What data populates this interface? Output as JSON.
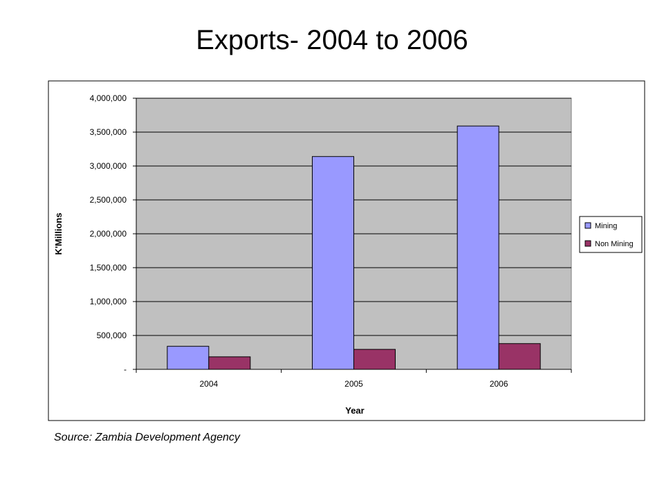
{
  "slide": {
    "title": "Exports- 2004 to 2006",
    "source": "Source: Zambia Development Agency"
  },
  "chart_data": {
    "type": "bar",
    "title": "",
    "xlabel": "Year",
    "ylabel": "K'Millions",
    "categories": [
      "2004",
      "2005",
      "2006"
    ],
    "series": [
      {
        "name": "Mining",
        "values": [
          340000,
          3140000,
          3590000
        ],
        "color": "#9999ff"
      },
      {
        "name": "Non Mining",
        "values": [
          185000,
          295000,
          380000
        ],
        "color": "#993366"
      }
    ],
    "ylim": [
      0,
      4000000
    ],
    "yticks": [
      0,
      500000,
      1000000,
      1500000,
      2000000,
      2500000,
      3000000,
      3500000,
      4000000
    ],
    "ytick_labels": [
      "-",
      "500,000",
      "1,000,000",
      "1,500,000",
      "2,000,000",
      "2,500,000",
      "3,000,000",
      "3,500,000",
      "4,000,000"
    ],
    "grid": true,
    "plot_background": "#c0c0c0",
    "legend_position": "right"
  }
}
